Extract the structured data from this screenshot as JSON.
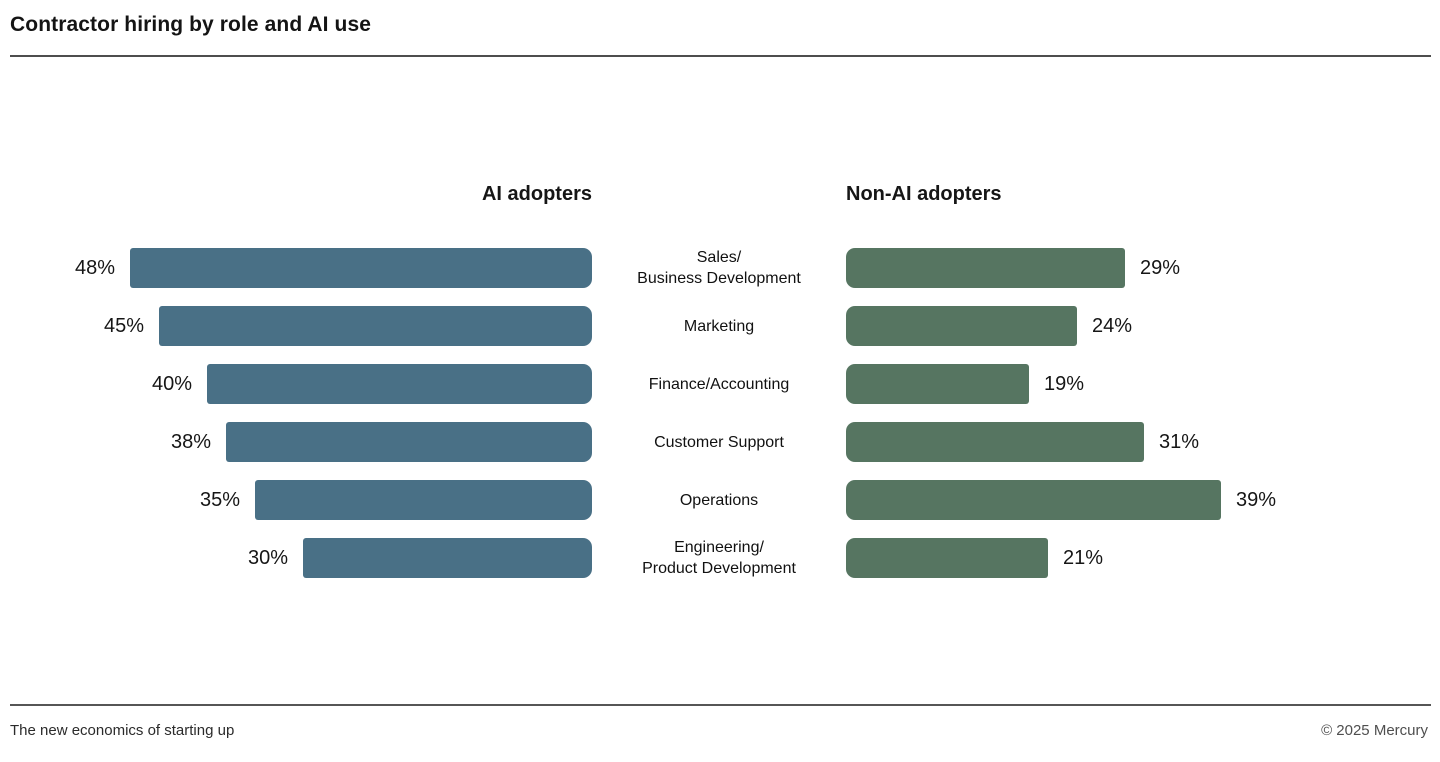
{
  "header": {
    "title": "Contractor hiring by role and AI use"
  },
  "footer": {
    "left": "The new economics of starting up",
    "right": "© 2025 Mercury"
  },
  "chart_data": {
    "type": "bar",
    "orientation": "horizontal",
    "layout": "butterfly",
    "title": "Contractor hiring by role and AI use",
    "value_format": "percent",
    "xlim": [
      0,
      50
    ],
    "grid": false,
    "legend_position": "column-headers",
    "categories": [
      "Sales/\nBusiness Development",
      "Marketing",
      "Finance/Accounting",
      "Customer Support",
      "Operations",
      "Engineering/\nProduct Development"
    ],
    "series": [
      {
        "name": "AI adopters",
        "side": "left",
        "color": "#497086",
        "values": [
          48,
          45,
          40,
          38,
          35,
          30
        ],
        "labels": [
          "48%",
          "45%",
          "40%",
          "38%",
          "35%",
          "30%"
        ]
      },
      {
        "name": "Non-AI adopters",
        "side": "right",
        "color": "#567561",
        "values": [
          29,
          24,
          19,
          31,
          39,
          21
        ],
        "labels": [
          "29%",
          "24%",
          "19%",
          "31%",
          "39%",
          "21%"
        ]
      }
    ]
  }
}
